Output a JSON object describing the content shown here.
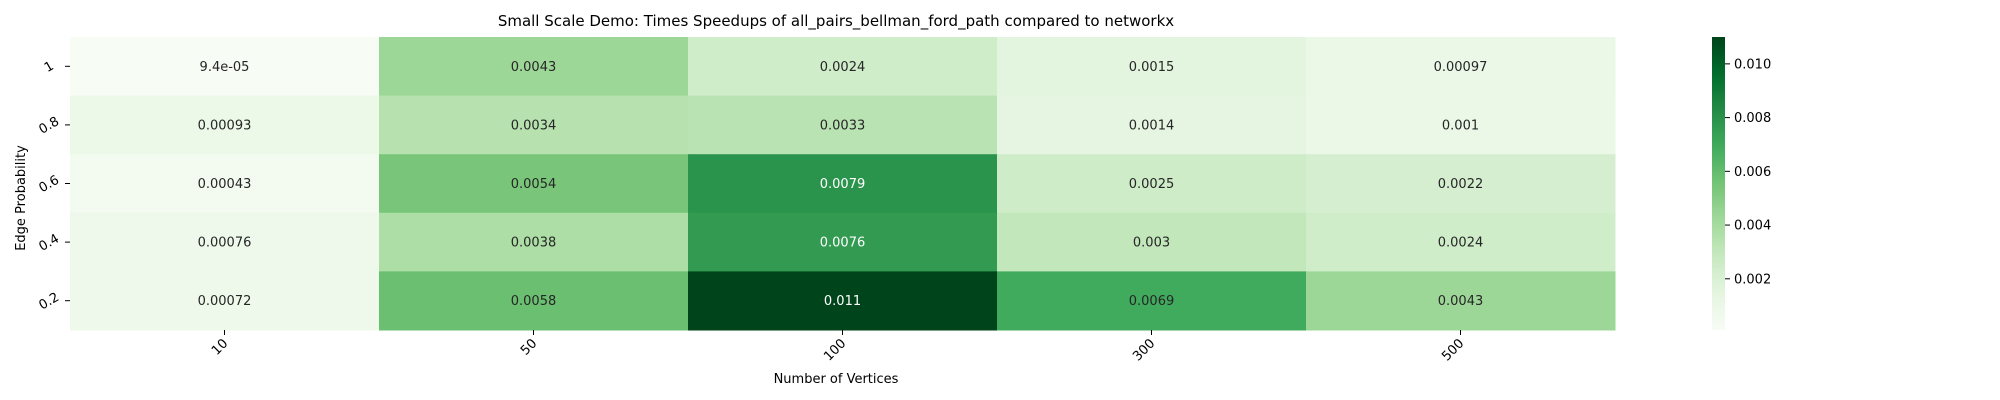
{
  "chart_data": {
    "type": "heatmap",
    "title": "Small Scale Demo: Times Speedups of all_pairs_bellman_ford_path compared to networkx",
    "xlabel": "Number of Vertices",
    "ylabel": "Edge Probability",
    "x_categories": [
      "10",
      "50",
      "100",
      "300",
      "500"
    ],
    "y_categories": [
      "1",
      "0.8",
      "0.6",
      "0.4",
      "0.2"
    ],
    "values": [
      [
        9.4e-05,
        0.0043,
        0.0024,
        0.0015,
        0.00097
      ],
      [
        0.00093,
        0.0034,
        0.0033,
        0.0014,
        0.001
      ],
      [
        0.00043,
        0.0054,
        0.0079,
        0.0025,
        0.0022
      ],
      [
        0.00076,
        0.0038,
        0.0076,
        0.003,
        0.0024
      ],
      [
        0.00072,
        0.0058,
        0.011,
        0.0069,
        0.0043
      ]
    ],
    "value_labels": [
      [
        "9.4e-05",
        "0.0043",
        "0.0024",
        "0.0015",
        "0.00097"
      ],
      [
        "0.00093",
        "0.0034",
        "0.0033",
        "0.0014",
        "0.001"
      ],
      [
        "0.00043",
        "0.0054",
        "0.0079",
        "0.0025",
        "0.0022"
      ],
      [
        "0.00076",
        "0.0038",
        "0.0076",
        "0.003",
        "0.0024"
      ],
      [
        "0.00072",
        "0.0058",
        "0.011",
        "0.0069",
        "0.0043"
      ]
    ],
    "colormap": "Greens",
    "colorbar": {
      "range": [
        9.4e-05,
        0.011
      ],
      "ticks": [
        0.002,
        0.004,
        0.006,
        0.008,
        0.01
      ],
      "tick_labels": [
        "0.002",
        "0.004",
        "0.006",
        "0.008",
        "0.010"
      ]
    },
    "grid": false,
    "legend": "colorbar-right"
  }
}
